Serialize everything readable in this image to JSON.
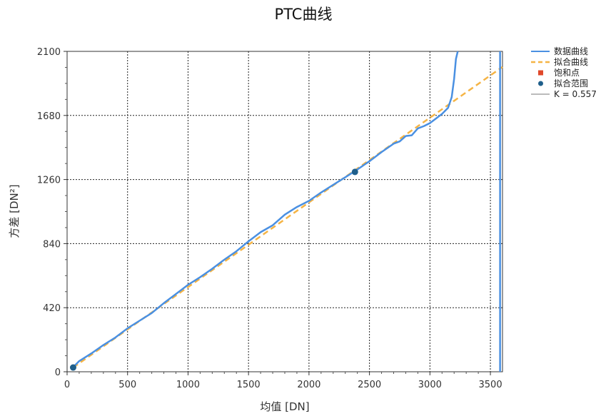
{
  "chart_data": {
    "type": "line",
    "title": "PTC曲线",
    "xlabel": "均值 [DN]",
    "ylabel": "方差 [DN²]",
    "xlim": [
      0,
      3600
    ],
    "ylim": [
      0,
      2100
    ],
    "x_ticks": [
      0,
      500,
      1000,
      1500,
      2000,
      2500,
      3000,
      3500
    ],
    "y_ticks": [
      0,
      420,
      840,
      1260,
      1680,
      2100
    ],
    "grid": true,
    "legend_position": "right",
    "colors": {
      "data_curve": "#4a90e2",
      "fit_curve": "#f5b445",
      "saturation_point": "#e0482a",
      "fit_range": "#1f5f8b",
      "k_line": "#bbbbbb"
    },
    "series": [
      {
        "name": "数据曲线",
        "style": "solid",
        "x": [
          50,
          100,
          200,
          300,
          400,
          500,
          600,
          700,
          800,
          900,
          1000,
          1100,
          1200,
          1300,
          1400,
          1500,
          1600,
          1700,
          1800,
          1900,
          2000,
          2100,
          2200,
          2300,
          2380,
          2500,
          2600,
          2700,
          2750,
          2800,
          2850,
          2900,
          2950,
          3000,
          3050,
          3100,
          3150,
          3180,
          3200,
          3215,
          3230
        ],
        "y": [
          30,
          70,
          120,
          175,
          225,
          285,
          335,
          385,
          450,
          510,
          570,
          620,
          675,
          735,
          790,
          855,
          915,
          960,
          1030,
          1080,
          1120,
          1175,
          1225,
          1275,
          1315,
          1380,
          1440,
          1495,
          1510,
          1545,
          1550,
          1595,
          1610,
          1630,
          1660,
          1690,
          1730,
          1800,
          1920,
          2050,
          2100
        ]
      },
      {
        "name": "拟合曲线",
        "style": "dashed",
        "x": [
          50,
          3600
        ],
        "y": [
          28,
          1998
        ]
      },
      {
        "name": "饱和点",
        "style": "marker-square",
        "x": [],
        "y": []
      },
      {
        "name": "拟合范围",
        "style": "marker-circle",
        "x": [
          50,
          2380
        ],
        "y": [
          28,
          1310
        ]
      },
      {
        "name": "K = 0.557",
        "style": "line-legend-only",
        "x": [],
        "y": []
      }
    ],
    "extra_vertical_line": {
      "series": "数据曲线",
      "x": [
        3580,
        3580
      ],
      "y": [
        0,
        2100
      ]
    }
  }
}
